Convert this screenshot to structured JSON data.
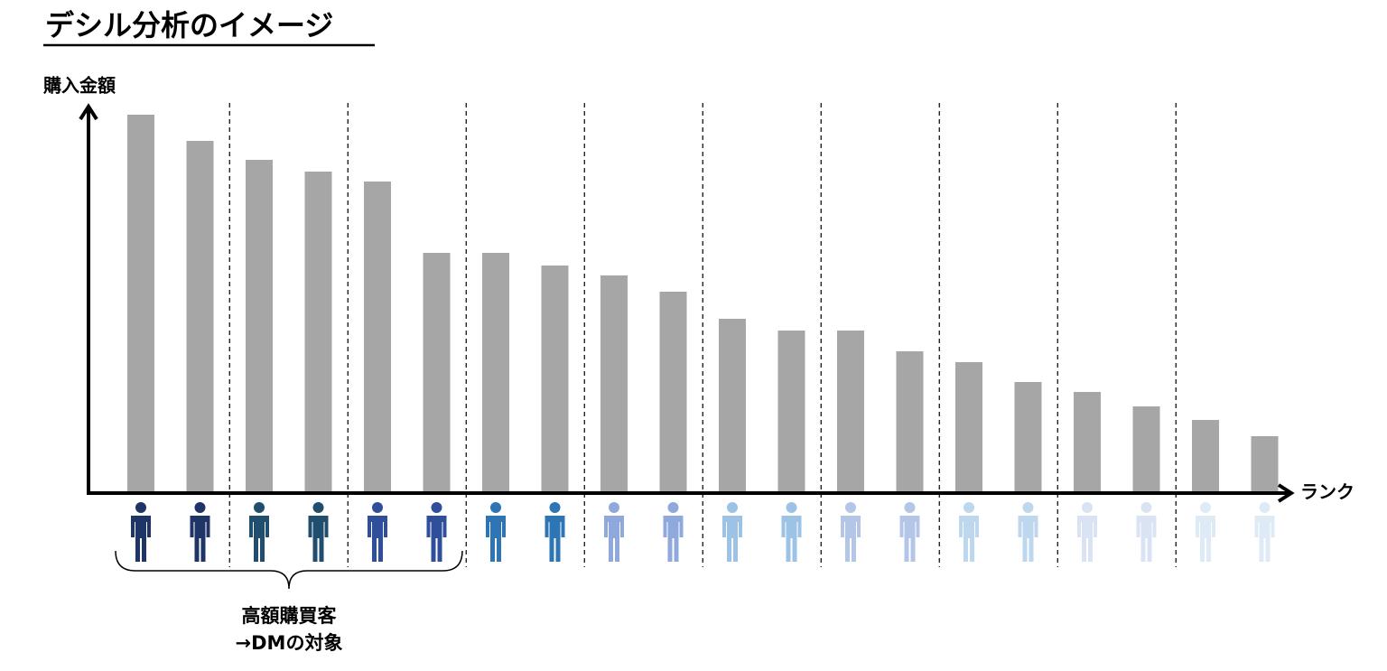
{
  "chart_data": {
    "type": "bar",
    "title": "デシル分析のイメージ",
    "y_label": "購入金額",
    "x_label": "ランク",
    "annotation": [
      "高額購買客",
      "→DMの対象"
    ],
    "categories": [
      null,
      null,
      null,
      null,
      null,
      null,
      null,
      null,
      null,
      null,
      null,
      null,
      null,
      null,
      null,
      null,
      null,
      null,
      null,
      null
    ],
    "values": [
      419,
      390,
      369,
      356,
      345,
      266,
      266,
      252,
      241,
      223,
      193,
      180,
      180,
      157,
      145,
      123,
      112,
      96,
      81,
      63
    ],
    "color": "#a6a6a6",
    "ylim": [
      0,
      428
    ],
    "icon_colors": [
      "#1f3567",
      "#1f4e6e",
      "#2f4f9c",
      "#2e75b6",
      "#8fa9dc",
      "#9cc3e6",
      "#b4c6e7",
      "#bdd7ee",
      "#dae3f3",
      "#deebf7"
    ]
  }
}
